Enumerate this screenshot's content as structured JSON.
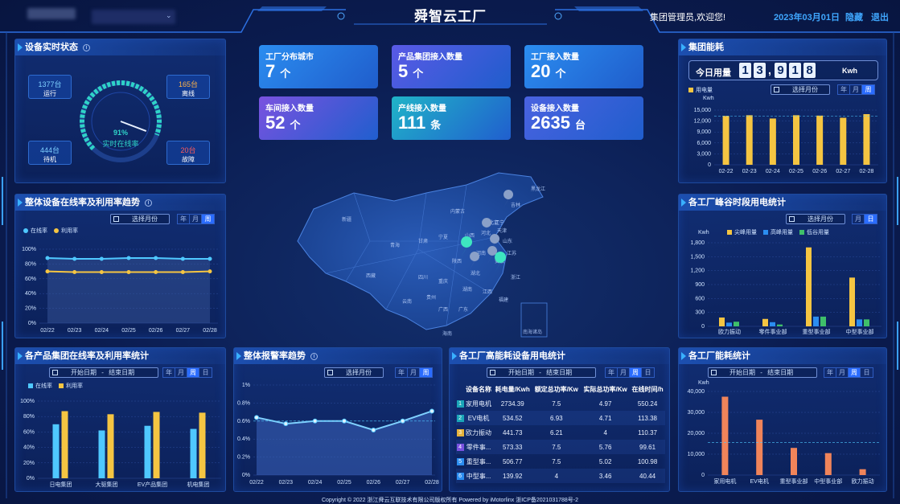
{
  "header": {
    "title": "舜智云工厂",
    "user_text": "集团管理员,欢迎您!",
    "date": "2023年03月01日",
    "hide_label": "隐藏",
    "logout_label": "退出"
  },
  "stats": [
    {
      "label": "工厂分布城市",
      "value": "7",
      "unit": "个",
      "color": "#2b8df0"
    },
    {
      "label": "产品集团接入数量",
      "value": "5",
      "unit": "个",
      "color": "#5a5ae6"
    },
    {
      "label": "工厂接入数量",
      "value": "20",
      "unit": "个",
      "color": "#2b8df0"
    },
    {
      "label": "车间接入数量",
      "value": "52",
      "unit": "个",
      "color": "#7a52e0"
    },
    {
      "label": "产线接入数量",
      "value": "111",
      "unit": "条",
      "color": "#20b4c8"
    },
    {
      "label": "设备接入数量",
      "value": "2635",
      "unit": "台",
      "color": "#4a62e0"
    }
  ],
  "device_status": {
    "title": "设备实时状态",
    "running": {
      "value": "1377台",
      "label": "运行"
    },
    "offline": {
      "value": "165台",
      "label": "离线"
    },
    "standby": {
      "value": "444台",
      "label": "待机"
    },
    "fault": {
      "value": "20台",
      "label": "故障"
    },
    "gauge_value": "91%",
    "gauge_label": "实时在线率",
    "gauge_fraction": 0.91
  },
  "energy": {
    "title": "集团能耗",
    "today_label": "今日用量",
    "digits": [
      "1",
      "3",
      ",",
      "9",
      "1",
      "8"
    ],
    "unit": "Kwh",
    "month_placeholder": "选择月份",
    "seg": [
      "年",
      "月",
      "周"
    ],
    "seg_on": 2,
    "chart_data": {
      "type": "bar",
      "legend": "用电量",
      "ylabel": "Kwh",
      "categories": [
        "02-22",
        "02-23",
        "02-24",
        "02-25",
        "02-26",
        "02-27",
        "02-28"
      ],
      "values": [
        13400,
        13600,
        12700,
        13600,
        13500,
        12900,
        13900
      ],
      "ylim": [
        0,
        15000
      ],
      "ticks": [
        "0",
        "3,000",
        "6,000",
        "9,000",
        "12,000",
        "15,000"
      ],
      "avg": 13400
    }
  },
  "trend": {
    "title": "整体设备在线率及利用率趋势",
    "month_placeholder": "选择月份",
    "seg": [
      "年",
      "月",
      "周"
    ],
    "seg_on": 2,
    "chart_data": {
      "type": "line",
      "categories": [
        "02/22",
        "02/23",
        "02/24",
        "02/25",
        "02/26",
        "02/27",
        "02/28"
      ],
      "series": [
        {
          "name": "在线率",
          "values": [
            88,
            87,
            87,
            88,
            88,
            87,
            87
          ],
          "color": "#4fc8ff"
        },
        {
          "name": "利用率",
          "values": [
            70,
            69,
            69,
            69,
            69,
            69,
            70
          ],
          "color": "#f5c542"
        }
      ],
      "ticks": [
        "0%",
        "20%",
        "40%",
        "60%",
        "80%",
        "100%"
      ],
      "ylim": [
        0,
        100
      ]
    }
  },
  "peak": {
    "title": "各工厂峰谷时段用电统计",
    "month_placeholder": "选择月份",
    "seg": [
      "月",
      "日"
    ],
    "seg_on": 1,
    "chart_data": {
      "type": "bar",
      "ylabel": "Kwh",
      "categories": [
        "欧力振动",
        "零件事业部",
        "重型事业部",
        "中型事业部"
      ],
      "series": [
        {
          "name": "尖峰用量",
          "values": [
            190,
            160,
            1700,
            1050
          ],
          "color": "#f5c542"
        },
        {
          "name": "高峰用量",
          "values": [
            80,
            90,
            210,
            150
          ],
          "color": "#2b8df0"
        },
        {
          "name": "低谷用量",
          "values": [
            100,
            40,
            210,
            150
          ],
          "color": "#3fc06a"
        }
      ],
      "ticks": [
        "0",
        "300",
        "600",
        "900",
        "1,200",
        "1,500",
        "1,800"
      ],
      "ylim": [
        0,
        1800
      ]
    }
  },
  "product": {
    "title": "各产品集团在线率及利用率统计",
    "start_label": "开始日期",
    "sep": "-",
    "end_label": "结束日期",
    "seg": [
      "年",
      "月",
      "周",
      "日"
    ],
    "seg_on": 2,
    "chart_data": {
      "type": "bar",
      "categories": [
        "日电集团",
        "大驱集团",
        "EV产品集团",
        "机电集团"
      ],
      "series": [
        {
          "name": "在线率",
          "values": [
            70,
            62,
            68,
            64
          ],
          "color": "#4fc8ff"
        },
        {
          "name": "利用率",
          "values": [
            87,
            83,
            86,
            85
          ],
          "color": "#f5c542"
        }
      ],
      "ticks": [
        "0%",
        "20%",
        "40%",
        "60%",
        "80%",
        "100%"
      ],
      "ylim": [
        0,
        100
      ]
    }
  },
  "alarm": {
    "title": "整体报警率趋势",
    "month_placeholder": "选择月份",
    "seg": [
      "年",
      "月",
      "周"
    ],
    "seg_on": 2,
    "chart_data": {
      "type": "area",
      "categories": [
        "02/22",
        "02/23",
        "02/24",
        "02/25",
        "02/26",
        "02/27",
        "02/28"
      ],
      "values": [
        0.64,
        0.57,
        0.6,
        0.6,
        0.5,
        0.6,
        0.71
      ],
      "ticks": [
        "0%",
        "0.2%",
        "0.4%",
        "0.6%",
        "0.8%",
        "1%"
      ],
      "ylim": [
        0,
        1
      ],
      "avg": 0.6
    }
  },
  "hi_energy": {
    "title": "各工厂高能耗设备用电统计",
    "start_label": "开始日期",
    "sep": "-",
    "end_label": "结束日期",
    "seg": [
      "年",
      "月",
      "周",
      "日"
    ],
    "seg_on": 2,
    "columns": [
      "设备名称",
      "耗电量/Kwh",
      "额定总功率/Kw",
      "实际总功率/Kw",
      "在线时间/h"
    ],
    "rows": [
      [
        "1",
        "家用电机",
        "2734.39",
        "7.5",
        "4.97",
        "550.24"
      ],
      [
        "2",
        "EV电机",
        "534.52",
        "6.93",
        "4.71",
        "113.38"
      ],
      [
        "3",
        "欧力振动",
        "441.73",
        "6.21",
        "4",
        "110.37"
      ],
      [
        "4",
        "零件事...",
        "573.33",
        "7.5",
        "5.76",
        "99.61"
      ],
      [
        "5",
        "重型事...",
        "506.77",
        "7.5",
        "5.02",
        "100.98"
      ],
      [
        "6",
        "中型事...",
        "139.92",
        "4",
        "3.46",
        "40.44"
      ]
    ],
    "rank_colors": [
      "#1aa6b8",
      "#1aa6b8",
      "#e6b23a",
      "#7a52e0",
      "#2b8df0",
      "#2b8df0"
    ]
  },
  "factory_energy": {
    "title": "各工厂能耗统计",
    "start_label": "开始日期",
    "sep": "-",
    "end_label": "结束日期",
    "seg": [
      "年",
      "月",
      "周",
      "日"
    ],
    "seg_on": 2,
    "chart_data": {
      "type": "bar",
      "ylabel": "Kwh",
      "categories": [
        "家用电机",
        "EV电机",
        "重型事业部",
        "中型事业部",
        "欧力振动"
      ],
      "values": [
        37500,
        26500,
        13000,
        10500,
        2800
      ],
      "ylim": [
        0,
        40000
      ],
      "ticks": [
        "0",
        "10,000",
        "20,000",
        "30,000",
        "40,000"
      ],
      "avg": 15500,
      "color": "#f0845a"
    }
  },
  "map": {
    "provinces": [
      "黑龙江",
      "吉林",
      "辽宁",
      "内蒙古",
      "新疆",
      "西藏",
      "青海",
      "甘肃",
      "宁夏",
      "陕西",
      "山西",
      "河北",
      "北京",
      "天津",
      "山东",
      "河南",
      "湖北",
      "湖南",
      "四川",
      "重庆",
      "贵州",
      "云南",
      "广西",
      "广东",
      "江西",
      "安徽",
      "江苏",
      "浙江",
      "福建",
      "海南"
    ],
    "inset_label": "南海诸岛"
  },
  "footer": "Copyright © 2022 浙江舜云互联技术有限公司版权所有 Powered by iMotorlinx 浙ICP备2021031788号-2"
}
